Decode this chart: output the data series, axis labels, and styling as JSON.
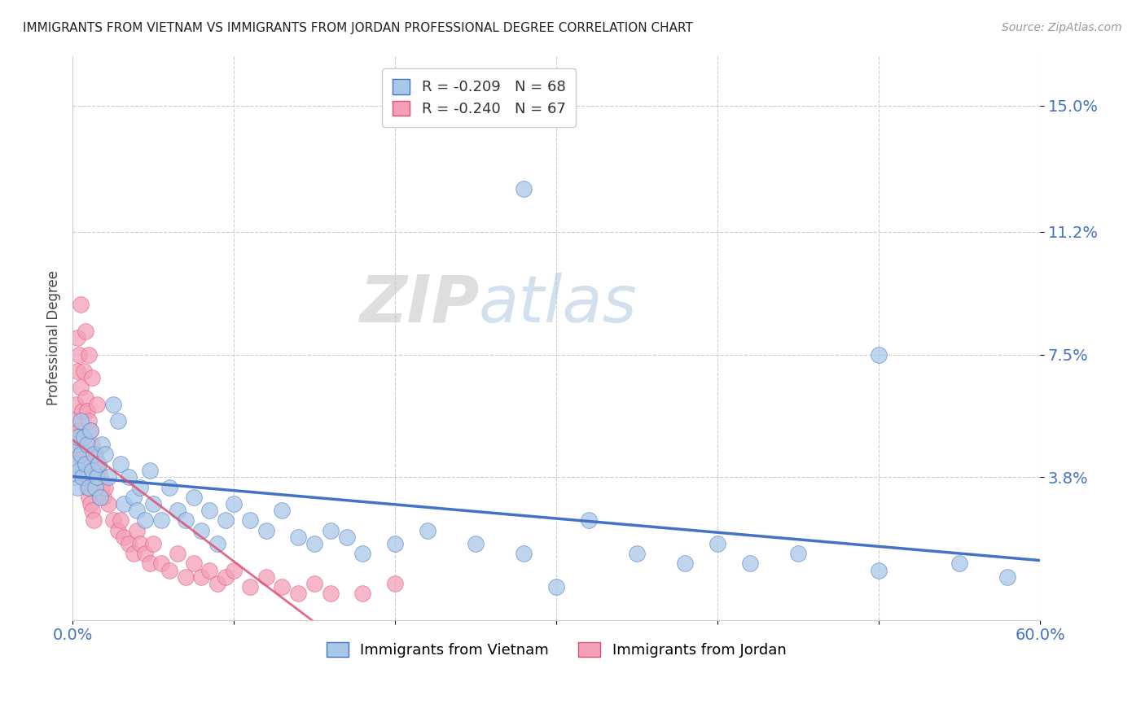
{
  "title": "IMMIGRANTS FROM VIETNAM VS IMMIGRANTS FROM JORDAN PROFESSIONAL DEGREE CORRELATION CHART",
  "source": "Source: ZipAtlas.com",
  "ylabel": "Professional Degree",
  "ytick_labels": [
    "3.8%",
    "7.5%",
    "11.2%",
    "15.0%"
  ],
  "ytick_values": [
    0.038,
    0.075,
    0.112,
    0.15
  ],
  "xlim": [
    0.0,
    0.6
  ],
  "ylim": [
    -0.005,
    0.165
  ],
  "legend1_text": "R = -0.209   N = 68",
  "legend2_text": "R = -0.240   N = 67",
  "color_vietnam": "#a8c8e8",
  "color_jordan": "#f4a0b8",
  "line_color_vietnam": "#4472c4",
  "line_color_jordan": "#e05070",
  "watermark_zip": "ZIP",
  "watermark_atlas": "atlas",
  "background_color": "#ffffff",
  "vietnam_x": [
    0.001,
    0.002,
    0.002,
    0.003,
    0.003,
    0.004,
    0.005,
    0.005,
    0.006,
    0.007,
    0.008,
    0.009,
    0.01,
    0.011,
    0.012,
    0.013,
    0.014,
    0.015,
    0.016,
    0.017,
    0.018,
    0.02,
    0.022,
    0.025,
    0.028,
    0.03,
    0.032,
    0.035,
    0.038,
    0.04,
    0.042,
    0.045,
    0.048,
    0.05,
    0.055,
    0.06,
    0.065,
    0.07,
    0.075,
    0.08,
    0.085,
    0.09,
    0.095,
    0.1,
    0.11,
    0.12,
    0.13,
    0.14,
    0.15,
    0.16,
    0.17,
    0.18,
    0.2,
    0.22,
    0.25,
    0.28,
    0.3,
    0.32,
    0.35,
    0.38,
    0.4,
    0.42,
    0.45,
    0.5,
    0.55,
    0.58,
    0.28,
    0.5
  ],
  "vietnam_y": [
    0.038,
    0.042,
    0.048,
    0.035,
    0.05,
    0.04,
    0.045,
    0.055,
    0.038,
    0.05,
    0.042,
    0.048,
    0.035,
    0.052,
    0.04,
    0.045,
    0.035,
    0.038,
    0.042,
    0.032,
    0.048,
    0.045,
    0.038,
    0.06,
    0.055,
    0.042,
    0.03,
    0.038,
    0.032,
    0.028,
    0.035,
    0.025,
    0.04,
    0.03,
    0.025,
    0.035,
    0.028,
    0.025,
    0.032,
    0.022,
    0.028,
    0.018,
    0.025,
    0.03,
    0.025,
    0.022,
    0.028,
    0.02,
    0.018,
    0.022,
    0.02,
    0.015,
    0.018,
    0.022,
    0.018,
    0.015,
    0.005,
    0.025,
    0.015,
    0.012,
    0.018,
    0.012,
    0.015,
    0.01,
    0.012,
    0.008,
    0.125,
    0.075
  ],
  "jordan_x": [
    0.001,
    0.002,
    0.002,
    0.003,
    0.003,
    0.004,
    0.004,
    0.005,
    0.005,
    0.006,
    0.006,
    0.007,
    0.007,
    0.008,
    0.008,
    0.009,
    0.009,
    0.01,
    0.01,
    0.011,
    0.011,
    0.012,
    0.012,
    0.013,
    0.014,
    0.015,
    0.016,
    0.017,
    0.018,
    0.019,
    0.02,
    0.022,
    0.025,
    0.028,
    0.03,
    0.032,
    0.035,
    0.038,
    0.04,
    0.042,
    0.045,
    0.048,
    0.05,
    0.055,
    0.06,
    0.065,
    0.07,
    0.075,
    0.08,
    0.085,
    0.09,
    0.095,
    0.1,
    0.11,
    0.12,
    0.13,
    0.14,
    0.15,
    0.16,
    0.18,
    0.2,
    0.003,
    0.005,
    0.008,
    0.01,
    0.012,
    0.015
  ],
  "jordan_y": [
    0.055,
    0.045,
    0.06,
    0.05,
    0.07,
    0.052,
    0.075,
    0.048,
    0.065,
    0.045,
    0.058,
    0.042,
    0.07,
    0.038,
    0.062,
    0.035,
    0.058,
    0.032,
    0.055,
    0.03,
    0.052,
    0.028,
    0.048,
    0.025,
    0.045,
    0.042,
    0.04,
    0.038,
    0.035,
    0.032,
    0.035,
    0.03,
    0.025,
    0.022,
    0.025,
    0.02,
    0.018,
    0.015,
    0.022,
    0.018,
    0.015,
    0.012,
    0.018,
    0.012,
    0.01,
    0.015,
    0.008,
    0.012,
    0.008,
    0.01,
    0.006,
    0.008,
    0.01,
    0.005,
    0.008,
    0.005,
    0.003,
    0.006,
    0.003,
    0.003,
    0.006,
    0.08,
    0.09,
    0.082,
    0.075,
    0.068,
    0.06
  ]
}
